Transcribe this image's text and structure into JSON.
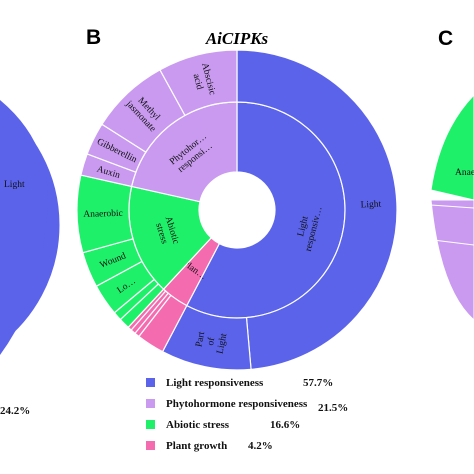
{
  "panels": {
    "left_pct": "24.2%",
    "center": {
      "letter": "B",
      "title": "AiCIPKs"
    },
    "right": {
      "letter": "C"
    }
  },
  "chart_data": {
    "type": "pie",
    "subtype": "sunburst",
    "title": "AiCIPKs",
    "colors": {
      "Light responsiveness": "#5a63ea",
      "Phytohormone responsiveness": "#c99af0",
      "Abiotic stress": "#1ef06a",
      "Plant growth": "#f56bb0"
    },
    "inner": [
      {
        "label": "Light responsiv…",
        "category": "Light responsiveness",
        "value": 57.7
      },
      {
        "label": "Plan…",
        "category": "Plant growth",
        "value": 4.2
      },
      {
        "label": "Abiotic stress",
        "category": "Abiotic stress",
        "value": 16.6
      },
      {
        "label": "Phytohor… responsi…",
        "category": "Phytohormone responsiveness",
        "value": 21.5
      }
    ],
    "outer": [
      {
        "label": "Light",
        "category": "Light responsiveness",
        "value": 48.6
      },
      {
        "label": "Part of Light",
        "category": "Light responsiveness",
        "value": 9.1
      },
      {
        "label": "",
        "category": "Plant growth",
        "value": 2.8
      },
      {
        "label": "",
        "category": "Plant growth",
        "value": 0.5
      },
      {
        "label": "",
        "category": "Plant growth",
        "value": 0.5
      },
      {
        "label": "",
        "category": "Plant growth",
        "value": 0.4
      },
      {
        "label": "",
        "category": "Abiotic stress",
        "value": 1.1
      },
      {
        "label": "",
        "category": "Abiotic stress",
        "value": 0.9
      },
      {
        "label": "Lo…",
        "category": "Abiotic stress",
        "value": 3.2
      },
      {
        "label": "Wound",
        "category": "Abiotic stress",
        "value": 3.6
      },
      {
        "label": "Anaerobic",
        "category": "Abiotic stress",
        "value": 7.8
      },
      {
        "label": "Auxin",
        "category": "Phytohormone responsiveness",
        "value": 2.2
      },
      {
        "label": "Gibberellin",
        "category": "Phytohormone responsiveness",
        "value": 3.3
      },
      {
        "label": "Methyl jasmonate",
        "category": "Phytohormone responsiveness",
        "value": 8.0
      },
      {
        "label": "Abscisic acid",
        "category": "Phytohormone responsiveness",
        "value": 8.0
      }
    ],
    "legend": [
      {
        "label": "Light responsiveness",
        "percent": "57.7%",
        "category": "Light responsiveness"
      },
      {
        "label": "Phytohormone responsiveness",
        "percent": "21.5%",
        "category": "Phytohormone responsiveness"
      },
      {
        "label": "Abiotic stress",
        "percent": "16.6%",
        "category": "Abiotic stress"
      },
      {
        "label": "Plant growth",
        "percent": "4.2%",
        "category": "Plant growth"
      }
    ]
  }
}
